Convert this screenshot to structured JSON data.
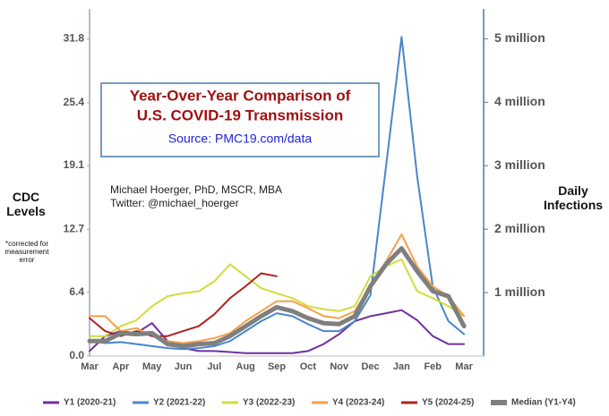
{
  "chart_data": {
    "type": "line",
    "title": [
      "Year-Over-Year Comparison of",
      "U.S. COVID-19 Transmission"
    ],
    "subtitle": "Source: PMC19.com/data",
    "annotations": [
      "Michael Hoerger, PhD, MSCR, MBA",
      "Twitter: @michael_hoerger"
    ],
    "ylabel": "CDC Levels",
    "ylabel_note": "*corrected for measurement error",
    "y2label": "Daily Infections",
    "grid": false,
    "categories": [
      "Mar",
      null,
      "Apr",
      null,
      "May",
      null,
      "Jun",
      null,
      "Jul",
      null,
      "Aug",
      null,
      "Sep",
      null,
      "Oct",
      null,
      "Nov",
      null,
      "Dec",
      null,
      "Jan",
      null,
      "Feb",
      null,
      "Mar"
    ],
    "ylim": [
      0,
      34.8
    ],
    "yticks": [
      {
        "value": 0,
        "label": "0.0"
      },
      6.4,
      12.7,
      19.1,
      25.4,
      31.8
    ],
    "y2lim": [
      0,
      5470000
    ],
    "y2ticks": [
      {
        "value": 1000000,
        "label": "1 million"
      },
      {
        "value": 2000000,
        "label": "2 million"
      },
      {
        "value": 3000000,
        "label": "3 million"
      },
      {
        "value": 4000000,
        "label": "4 million"
      },
      {
        "value": 5000000,
        "label": "5 million"
      }
    ],
    "series": [
      {
        "name": "Y1 (2020-21)",
        "color": "#7030a0",
        "width": 2,
        "values": [
          0.5,
          2.0,
          2.5,
          2.3,
          3.3,
          1.5,
          0.8,
          0.5,
          0.5,
          0.4,
          0.3,
          0.3,
          0.3,
          0.3,
          0.5,
          1.2,
          2.2,
          3.5,
          4.0,
          4.3,
          4.6,
          3.6,
          2.0,
          1.2,
          1.2
        ]
      },
      {
        "name": "Y2 (2021-22)",
        "color": "#4a86c8",
        "width": 2,
        "values": [
          1.5,
          1.3,
          1.4,
          1.2,
          1.0,
          0.8,
          0.7,
          0.8,
          1.0,
          1.5,
          2.5,
          3.5,
          4.3,
          4.0,
          3.2,
          2.5,
          2.5,
          3.5,
          6.1,
          19.0,
          32.0,
          18.0,
          7.0,
          3.5,
          2.2
        ]
      },
      {
        "name": "Y3 (2022-23)",
        "color": "#d2dc3c",
        "width": 2,
        "values": [
          2.0,
          2.0,
          3.0,
          3.6,
          5.0,
          6.0,
          6.3,
          6.5,
          7.5,
          9.2,
          8.0,
          6.8,
          6.3,
          5.8,
          5.0,
          4.7,
          4.5,
          5.0,
          8.0,
          9.0,
          9.7,
          6.5,
          5.8,
          5.0,
          4.0
        ]
      },
      {
        "name": "Y4 (2023-24)",
        "color": "#f5a04a",
        "width": 2,
        "values": [
          4.0,
          4.0,
          2.5,
          2.8,
          2.0,
          1.5,
          1.3,
          1.5,
          1.8,
          2.3,
          3.5,
          4.5,
          5.5,
          5.5,
          4.8,
          4.0,
          3.8,
          4.5,
          7.0,
          9.5,
          12.2,
          9.0,
          7.0,
          6.0,
          4.0
        ]
      },
      {
        "name": "Y5 (2024-25)",
        "color": "#b22020",
        "width": 2,
        "values": [
          3.8,
          2.5,
          2.0,
          2.5,
          2.0,
          2.0,
          2.5,
          3.0,
          4.2,
          5.8,
          7.0,
          8.3,
          8.0,
          null,
          null,
          null,
          null,
          null,
          null,
          null,
          null,
          null,
          null,
          null,
          null
        ]
      },
      {
        "name": "Median (Y1-Y4)",
        "color": "#7f7f7f",
        "width": 5,
        "values": [
          1.5,
          1.5,
          2.3,
          2.2,
          2.3,
          1.2,
          1.0,
          1.2,
          1.3,
          2.0,
          3.0,
          4.0,
          4.9,
          4.5,
          3.8,
          3.3,
          3.2,
          4.0,
          7.0,
          9.2,
          10.8,
          8.5,
          6.5,
          6.0,
          3.0
        ]
      }
    ]
  }
}
